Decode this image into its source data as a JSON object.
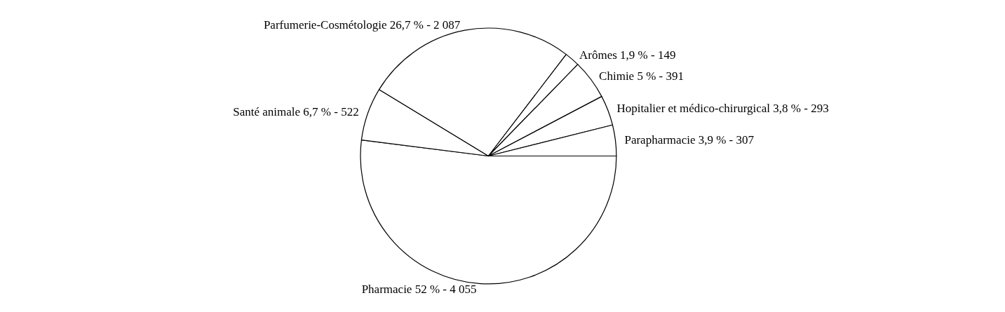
{
  "chart_data": {
    "type": "pie",
    "categories": [
      "Pharmacie",
      "Santé animale",
      "Parfumerie-Cosmétologie",
      "Arômes",
      "Chimie",
      "Hopitalier et médico-chirurgical",
      "Parapharmacie"
    ],
    "values": [
      52,
      6.7,
      26.7,
      1.9,
      5,
      3.8,
      3.9
    ],
    "value_labels": [
      "52 % - 4 055",
      "6,7 % - 522",
      "26,7 % - 2 087",
      "1,9 % - 149",
      "5 % - 391",
      "3,8 % - 293",
      "3,9 % - 307"
    ],
    "colors": [
      "#ffffff",
      "#ffffff",
      "#ffffff",
      "#ffffff",
      "#ffffff",
      "#ffffff",
      "#ffffff"
    ],
    "legend": false
  }
}
